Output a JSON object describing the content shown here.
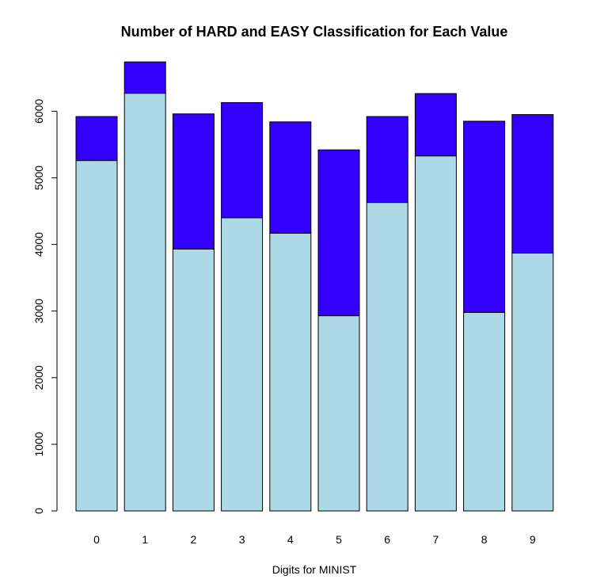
{
  "chart_data": {
    "type": "bar",
    "stacked": true,
    "title": "Number of HARD and EASY Classification for Each Value",
    "xlabel": "Digits for MINIST",
    "ylabel": "",
    "categories": [
      "0",
      "1",
      "2",
      "3",
      "4",
      "5",
      "6",
      "7",
      "8",
      "9"
    ],
    "series": [
      {
        "values": [
          5260,
          6270,
          3930,
          4400,
          4170,
          2930,
          4630,
          5330,
          2980,
          3870
        ],
        "color": "#add8e6"
      },
      {
        "values": [
          660,
          470,
          2030,
          1730,
          1670,
          2490,
          1290,
          935,
          2870,
          2080
        ],
        "color": "#3300ff"
      }
    ],
    "ylim": [
      0,
      6800
    ],
    "yticks": [
      "0",
      "1000",
      "2000",
      "3000",
      "4000",
      "5000",
      "6000"
    ],
    "grid": false,
    "legend": "none"
  }
}
